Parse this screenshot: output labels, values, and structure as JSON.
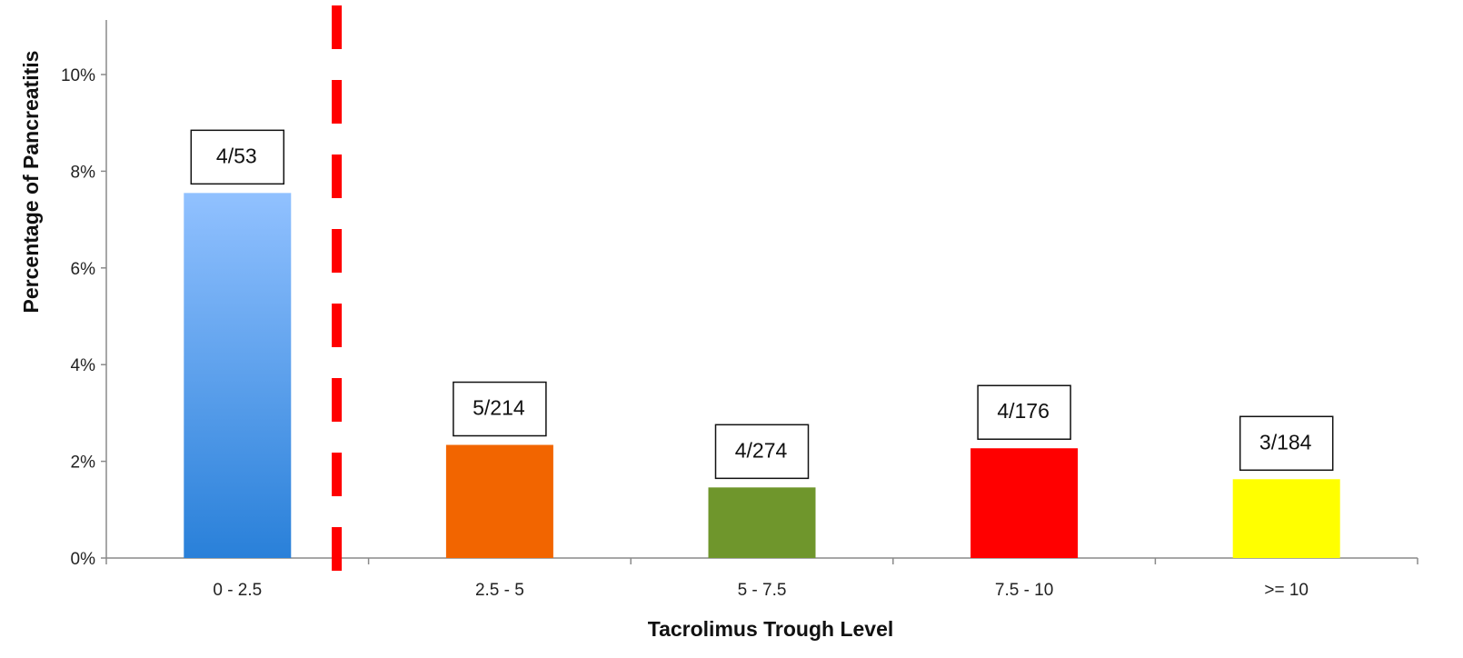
{
  "chart_data": {
    "type": "bar",
    "title": "",
    "xlabel": "Tacrolimus Trough Level",
    "ylabel": "Percentage of Pancreatitis",
    "ylim": [
      0,
      11
    ],
    "yticks": [
      0,
      2,
      4,
      6,
      8,
      10
    ],
    "ytick_labels": [
      "0%",
      "2%",
      "4%",
      "6%",
      "8%",
      "10%"
    ],
    "categories": [
      "0 - 2.5",
      "2.5 - 5",
      "5 - 7.5",
      "7.5 - 10",
      ">= 10"
    ],
    "values": [
      7.55,
      2.34,
      1.46,
      2.27,
      1.63
    ],
    "data_labels": [
      "4/53",
      "5/214",
      "4/274",
      "4/176",
      "3/184"
    ],
    "colors": [
      "gradient-blue",
      "#f26500",
      "#6f962c",
      "#ff0000",
      "#ffff00"
    ],
    "gradient_blue": {
      "top": "#91c1ff",
      "bottom": "#2980d9"
    },
    "threshold_line": {
      "x_between": [
        "0 - 2.5",
        "2.5 - 5"
      ],
      "color": "#ff0000",
      "style": "dashed"
    },
    "grid": false,
    "legend": "none"
  }
}
